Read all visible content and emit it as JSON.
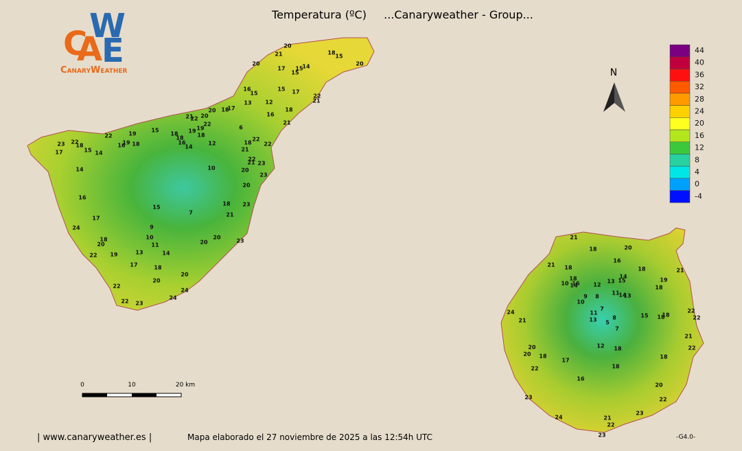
{
  "header": {
    "title": "Temperatura (ºC)",
    "subtitle": "...Canaryweather - Group..."
  },
  "logo": {
    "letters": [
      "C",
      "A",
      "W",
      "E"
    ],
    "name": "CanaryWeather"
  },
  "compass": "N",
  "legend": {
    "ticks": [
      44,
      40,
      36,
      32,
      28,
      24,
      20,
      16,
      12,
      8,
      4,
      0,
      -4
    ],
    "colors": [
      "#7a0080",
      "#c0003c",
      "#ff1010",
      "#ff5a00",
      "#ff9a00",
      "#ffd000",
      "#ffff20",
      "#b4e61e",
      "#3cc83c",
      "#28d2a0",
      "#00e6e6",
      "#00a0ff",
      "#0010ff"
    ]
  },
  "scale": {
    "labels": [
      "0",
      "10",
      "20 km"
    ]
  },
  "stations": {
    "tenerife": [
      20,
      21,
      18,
      15,
      20,
      20,
      17,
      15,
      14,
      15,
      16,
      15,
      15,
      17,
      22,
      21,
      13,
      12,
      16,
      18,
      20,
      18,
      17,
      21,
      22,
      20,
      22,
      19,
      19,
      18,
      15,
      18,
      18,
      16,
      14,
      12,
      6,
      21,
      22,
      19,
      16,
      19,
      18,
      22,
      23,
      18,
      15,
      14,
      17,
      22,
      18,
      22,
      21,
      22,
      21,
      23,
      23,
      10,
      20,
      14,
      20,
      16,
      18,
      23,
      15,
      7,
      21,
      17,
      24,
      9,
      20,
      10,
      23,
      18,
      11,
      20,
      20,
      14,
      13,
      22,
      19,
      17,
      18,
      20,
      20,
      24,
      22,
      24,
      22,
      23
    ],
    "gran_canaria": [
      21,
      18,
      20,
      16,
      21,
      18,
      18,
      14,
      15,
      19,
      21,
      18,
      10,
      16,
      14,
      12,
      13,
      18,
      11,
      14,
      13,
      9,
      8,
      10,
      7,
      24,
      11,
      22,
      18,
      15,
      18,
      22,
      21,
      13,
      8,
      5,
      7,
      21,
      20,
      12,
      18,
      22,
      20,
      18,
      17,
      18,
      22,
      18,
      16,
      20,
      23,
      22,
      23,
      24,
      21,
      22,
      23
    ]
  },
  "footer": {
    "site": "| www.canaryweather.es |",
    "note": "Mapa elaborado el 27 noviembre de 2025 a las 12:54h UTC",
    "version": "-G4.0-"
  }
}
